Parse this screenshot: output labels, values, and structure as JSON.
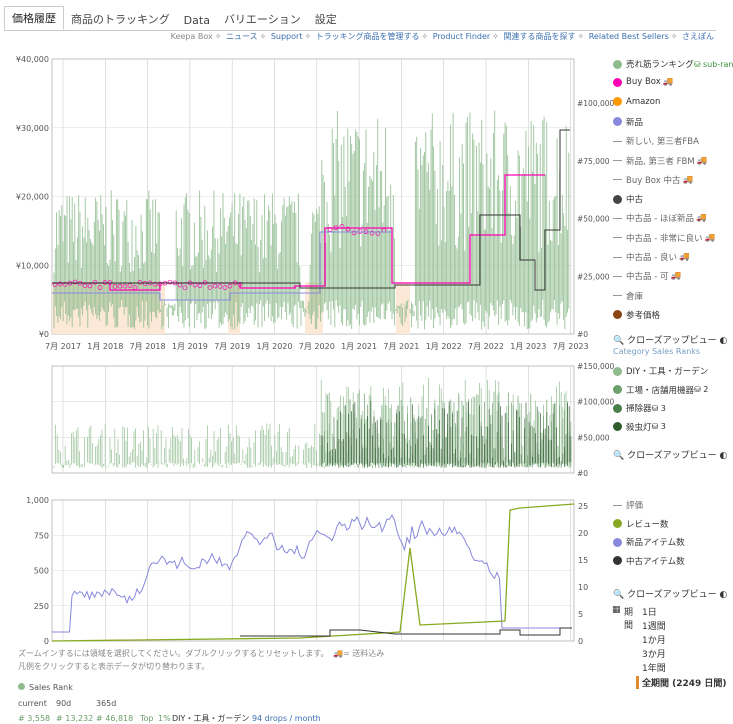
{
  "tabs": [
    "価格履歴",
    "商品のトラッキング",
    "Data",
    "バリエーション",
    "設定"
  ],
  "links": [
    "Keepa Box",
    "ニュース",
    "Support",
    "トラッキング商品を管理する",
    "Product Finder",
    "関連する商品を探す",
    "Related Best Sellers",
    "さえぽん"
  ],
  "chart1": {
    "y_left_ticks": [
      "¥40,000",
      "¥30,000",
      "¥20,000",
      "¥10,000",
      "¥0"
    ],
    "y_right_ticks": [
      "#100,000",
      "#75,000",
      "#50,000",
      "#25,000",
      "#0"
    ],
    "x_ticks": [
      "7月 2017",
      "1月 2018",
      "7月 2018",
      "1月 2019",
      "7月 2019",
      "1月 2020",
      "7月 2020",
      "1月 2021",
      "7月 2021",
      "1月 2022",
      "7月 2022",
      "1月 2023",
      "7月 2023"
    ]
  },
  "chart2": {
    "y_right_ticks": [
      "#150,000",
      "#100,000",
      "#50,000",
      "#0"
    ]
  },
  "chart3": {
    "y_left_ticks": [
      "1,000",
      "750",
      "500",
      "250",
      "0"
    ],
    "y_right_ticks": [
      "25",
      "20",
      "15",
      "10",
      "5",
      "0"
    ]
  },
  "legend1": [
    {
      "label": "売れ筋ランキング",
      "extra": "sub-ran",
      "color": "#8fbc8f",
      "kind": "dot"
    },
    {
      "label": "Buy Box",
      "color": "#ff00b4",
      "kind": "dot",
      "cart": true
    },
    {
      "label": "Amazon",
      "color": "#ff9900",
      "kind": "dot"
    },
    {
      "label": "新品",
      "color": "#8888dd",
      "kind": "dot"
    },
    {
      "label": "新しい, 第三者FBA",
      "color": "#999",
      "kind": "dash"
    },
    {
      "label": "新品, 第三者 FBM",
      "color": "#999",
      "kind": "dash",
      "cart": true
    },
    {
      "label": "Buy Box 中古",
      "color": "#999",
      "kind": "dash",
      "cart": true
    },
    {
      "label": "中古",
      "color": "#444",
      "kind": "dot"
    },
    {
      "label": "中古品 - ほぼ新品",
      "color": "#999",
      "kind": "dash",
      "cart": true
    },
    {
      "label": "中古品 - 非常に良い",
      "color": "#999",
      "kind": "dash",
      "cart": true
    },
    {
      "label": "中古品 - 良い",
      "color": "#999",
      "kind": "dash",
      "cart": true
    },
    {
      "label": "中古品 - 可",
      "color": "#999",
      "kind": "dash",
      "cart": true
    },
    {
      "label": "倉庫",
      "color": "#999",
      "kind": "dash"
    },
    {
      "label": "参考価格",
      "color": "#8b4513",
      "kind": "dot"
    }
  ],
  "closeup": "クローズアップビュー",
  "category_sales_ranks": "Category Sales Ranks",
  "legend2": [
    {
      "label": "DIY・工具・ガーデン",
      "color": "#8fbc8f"
    },
    {
      "label": "工場・店舗用機器",
      "extra": "2",
      "color": "#6b9f6b"
    },
    {
      "label": "掃除器",
      "extra": "3",
      "color": "#4a7f4a"
    },
    {
      "label": "殺虫灯",
      "extra": "3",
      "color": "#2e5e2e"
    }
  ],
  "legend3": [
    {
      "label": "評価",
      "color": "#999",
      "kind": "dash"
    },
    {
      "label": "レビュー数",
      "color": "#88aa22",
      "kind": "dot"
    },
    {
      "label": "新品アイテム数",
      "color": "#8888dd",
      "kind": "dot"
    },
    {
      "label": "中古アイテム数",
      "color": "#333",
      "kind": "dot"
    }
  ],
  "period_label": "期間",
  "periods": [
    "1日",
    "1週間",
    "1か月",
    "3か月",
    "1年間",
    "全期間 (2249 日間)"
  ],
  "help1": "ズームインするには領域を選択してください。ダブルクリックするとリセットします。",
  "help1b": "= 送料込み",
  "help2": "凡例をクリックすると表示データが切り替わります。",
  "sales_rank_label": "Sales Rank",
  "stats_header": [
    "current",
    "90d",
    "365d"
  ],
  "stats_row": [
    "# 3,558",
    "# 13,232",
    "# 46,818",
    "Top",
    "1%",
    "DIY・工具・ガーデン",
    "94 drops / month"
  ]
}
